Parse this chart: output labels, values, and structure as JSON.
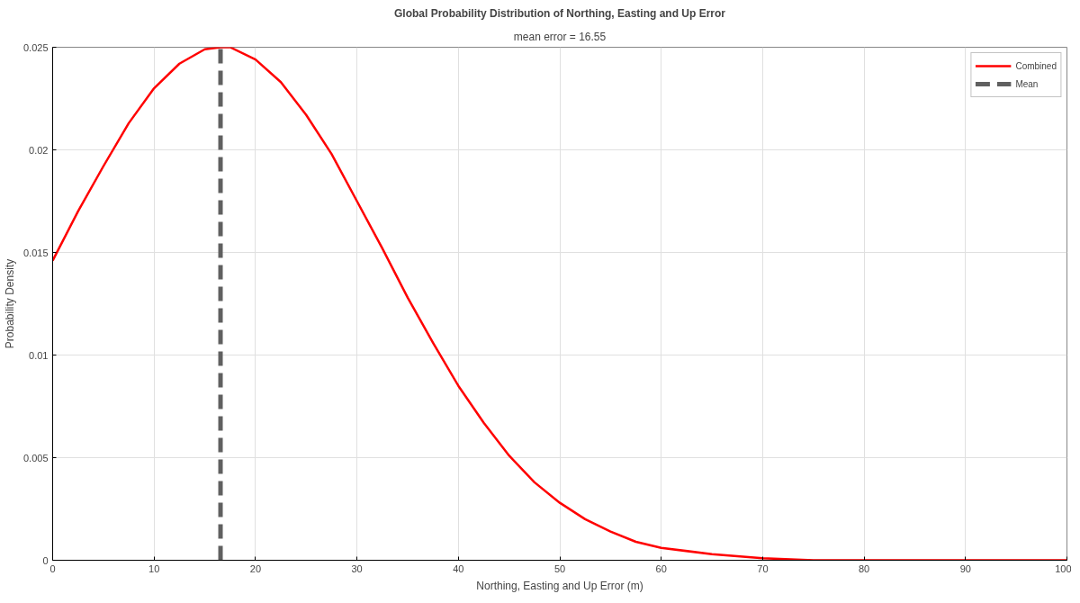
{
  "chart_data": {
    "type": "line",
    "title": "Global Probability Distribution of Northing, Easting and Up Error",
    "subtitle": "mean error = 16.55",
    "xlabel": "Northing, Easting and Up Error (m)",
    "ylabel": "Probability Density",
    "x": [
      0,
      2.5,
      5,
      7.5,
      10,
      12.5,
      15,
      16.55,
      17.5,
      20,
      22.5,
      25,
      27.5,
      30,
      32.5,
      35,
      37.5,
      40,
      42.5,
      45,
      47.5,
      50,
      52.5,
      55,
      57.5,
      60,
      65,
      70,
      75,
      80,
      90,
      100
    ],
    "series": [
      {
        "name": "Combined",
        "color": "#ff0000",
        "values": [
          0.0146,
          0.017,
          0.0192,
          0.0213,
          0.023,
          0.0242,
          0.0249,
          0.025,
          0.025,
          0.0244,
          0.0233,
          0.0217,
          0.0198,
          0.0175,
          0.0152,
          0.0128,
          0.0106,
          0.0085,
          0.0067,
          0.0051,
          0.0038,
          0.0028,
          0.002,
          0.0014,
          0.0009,
          0.0006,
          0.0003,
          0.0001,
          0,
          0,
          0,
          0
        ]
      }
    ],
    "ref_lines": [
      {
        "axis": "x",
        "value": 16.55,
        "label": "Mean",
        "color": "#606060",
        "line_style": "dashed"
      }
    ],
    "xlim": [
      0,
      100
    ],
    "xticks": [
      0,
      10,
      20,
      30,
      40,
      50,
      60,
      70,
      80,
      90,
      100
    ],
    "ylim": [
      0,
      0.025
    ],
    "yticks": [
      0,
      0.005,
      0.01,
      0.015,
      0.02,
      0.025
    ],
    "grid": true,
    "legend": "top right",
    "marker": "none",
    "line_style": "solid"
  }
}
